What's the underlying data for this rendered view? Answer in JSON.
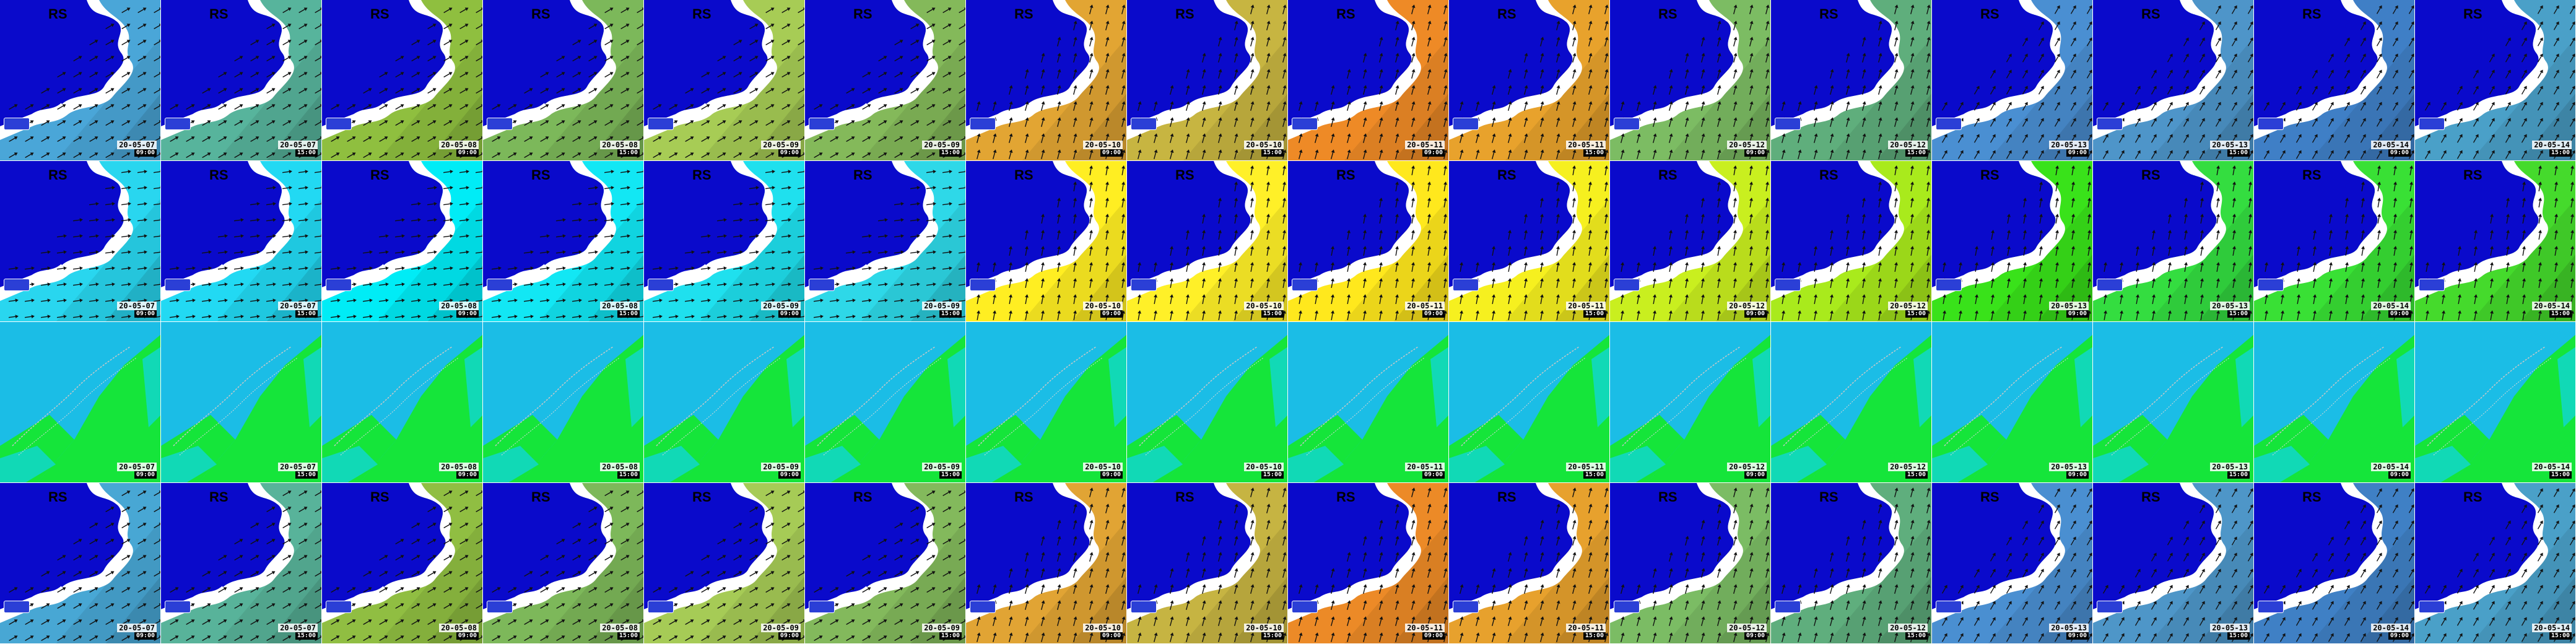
{
  "panel_label": "RS",
  "rows": [
    {
      "name": "row-wind-field",
      "frames": [
        {
          "date": "20-05-07",
          "time": "09:00",
          "fill": "#4aa6d8"
        },
        {
          "date": "20-05-07",
          "time": "15:00",
          "fill": "#57b49c"
        },
        {
          "date": "20-05-08",
          "time": "09:00",
          "fill": "#8fbf3f"
        },
        {
          "date": "20-05-08",
          "time": "15:00",
          "fill": "#7cb85a"
        },
        {
          "date": "20-05-09",
          "time": "09:00",
          "fill": "#a7cc55"
        },
        {
          "date": "20-05-09",
          "time": "15:00",
          "fill": "#84b95a"
        },
        {
          "date": "20-05-10",
          "time": "09:00",
          "fill": "#e2a533"
        },
        {
          "date": "20-05-10",
          "time": "15:00",
          "fill": "#c7b541"
        },
        {
          "date": "20-05-11",
          "time": "09:00",
          "fill": "#ee8a26"
        },
        {
          "date": "20-05-11",
          "time": "15:00",
          "fill": "#e8a22c"
        },
        {
          "date": "20-05-12",
          "time": "09:00",
          "fill": "#7cbc63"
        },
        {
          "date": "20-05-12",
          "time": "15:00",
          "fill": "#5fae7c"
        },
        {
          "date": "20-05-13",
          "time": "09:00",
          "fill": "#4a8fd2"
        },
        {
          "date": "20-05-13",
          "time": "15:00",
          "fill": "#4e95c9"
        },
        {
          "date": "20-05-14",
          "time": "09:00",
          "fill": "#3f7fc6"
        },
        {
          "date": "20-05-14",
          "time": "15:00",
          "fill": "#4aa0c8"
        }
      ]
    },
    {
      "name": "row-wave-field",
      "frames": [
        {
          "date": "20-05-07",
          "time": "09:00",
          "fill": "#29d6ef"
        },
        {
          "date": "20-05-07",
          "time": "15:00",
          "fill": "#22d9f3"
        },
        {
          "date": "20-05-08",
          "time": "09:00",
          "fill": "#00ecf6"
        },
        {
          "date": "20-05-08",
          "time": "15:00",
          "fill": "#12e7f4"
        },
        {
          "date": "20-05-09",
          "time": "09:00",
          "fill": "#1fe0ee"
        },
        {
          "date": "20-05-09",
          "time": "15:00",
          "fill": "#2ed8e8"
        },
        {
          "date": "20-05-10",
          "time": "09:00",
          "fill": "#ffee22"
        },
        {
          "date": "20-05-10",
          "time": "15:00",
          "fill": "#fff028"
        },
        {
          "date": "20-05-11",
          "time": "09:00",
          "fill": "#ffe81d"
        },
        {
          "date": "20-05-11",
          "time": "15:00",
          "fill": "#f6f01f"
        },
        {
          "date": "20-05-12",
          "time": "09:00",
          "fill": "#c9ef1f"
        },
        {
          "date": "20-05-12",
          "time": "15:00",
          "fill": "#a9ea1c"
        },
        {
          "date": "20-05-13",
          "time": "09:00",
          "fill": "#39e21a"
        },
        {
          "date": "20-05-13",
          "time": "15:00",
          "fill": "#34dd40"
        },
        {
          "date": "20-05-14",
          "time": "09:00",
          "fill": "#39e035"
        },
        {
          "date": "20-05-14",
          "time": "15:00",
          "fill": "#45da2c"
        }
      ]
    },
    {
      "name": "row-current-field",
      "frames": [
        {
          "date": "20-05-07",
          "time": "09:00",
          "fill": "#1bbde6"
        },
        {
          "date": "20-05-07",
          "time": "15:00",
          "fill": "#1bbde6"
        },
        {
          "date": "20-05-08",
          "time": "09:00",
          "fill": "#1bbde6"
        },
        {
          "date": "20-05-08",
          "time": "15:00",
          "fill": "#1bbde6"
        },
        {
          "date": "20-05-09",
          "time": "09:00",
          "fill": "#1bbde6"
        },
        {
          "date": "20-05-09",
          "time": "15:00",
          "fill": "#1bbde6"
        },
        {
          "date": "20-05-10",
          "time": "09:00",
          "fill": "#1bbde6"
        },
        {
          "date": "20-05-10",
          "time": "15:00",
          "fill": "#1bbde6"
        },
        {
          "date": "20-05-11",
          "time": "09:00",
          "fill": "#1bbde6"
        },
        {
          "date": "20-05-11",
          "time": "15:00",
          "fill": "#1bbde6"
        },
        {
          "date": "20-05-12",
          "time": "09:00",
          "fill": "#1bbde6"
        },
        {
          "date": "20-05-12",
          "time": "15:00",
          "fill": "#1bbde6"
        },
        {
          "date": "20-05-13",
          "time": "09:00",
          "fill": "#1bbde6"
        },
        {
          "date": "20-05-13",
          "time": "15:00",
          "fill": "#1bbde6"
        },
        {
          "date": "20-05-14",
          "time": "09:00",
          "fill": "#1bbde6"
        },
        {
          "date": "20-05-14",
          "time": "15:00",
          "fill": "#1bbde6"
        }
      ]
    },
    {
      "name": "row-wind-field-2",
      "frames": [
        {
          "date": "20-05-07",
          "time": "09:00",
          "fill": "#48a7d4"
        },
        {
          "date": "20-05-07",
          "time": "15:00",
          "fill": "#58b39a"
        },
        {
          "date": "20-05-08",
          "time": "09:00",
          "fill": "#90be42"
        },
        {
          "date": "20-05-08",
          "time": "15:00",
          "fill": "#7db85a"
        },
        {
          "date": "20-05-09",
          "time": "09:00",
          "fill": "#a6cb56"
        },
        {
          "date": "20-05-09",
          "time": "15:00",
          "fill": "#83b95c"
        },
        {
          "date": "20-05-10",
          "time": "09:00",
          "fill": "#e1a434"
        },
        {
          "date": "20-05-10",
          "time": "15:00",
          "fill": "#c6b442"
        },
        {
          "date": "20-05-11",
          "time": "09:00",
          "fill": "#ec8a27"
        },
        {
          "date": "20-05-11",
          "time": "15:00",
          "fill": "#e7a12d"
        },
        {
          "date": "20-05-12",
          "time": "09:00",
          "fill": "#7bbc64"
        },
        {
          "date": "20-05-12",
          "time": "15:00",
          "fill": "#5fae7d"
        },
        {
          "date": "20-05-13",
          "time": "09:00",
          "fill": "#4a8fd1"
        },
        {
          "date": "20-05-13",
          "time": "15:00",
          "fill": "#4e96c8"
        },
        {
          "date": "20-05-14",
          "time": "09:00",
          "fill": "#3f80c5"
        },
        {
          "date": "20-05-14",
          "time": "15:00",
          "fill": "#4aa0c8"
        }
      ]
    }
  ],
  "colors": {
    "land": "#0a0acb",
    "coast_white": "#ffffff",
    "arrow": "#111111",
    "current_shelf": "#15e53a",
    "current_deep": "#11d9b6"
  }
}
